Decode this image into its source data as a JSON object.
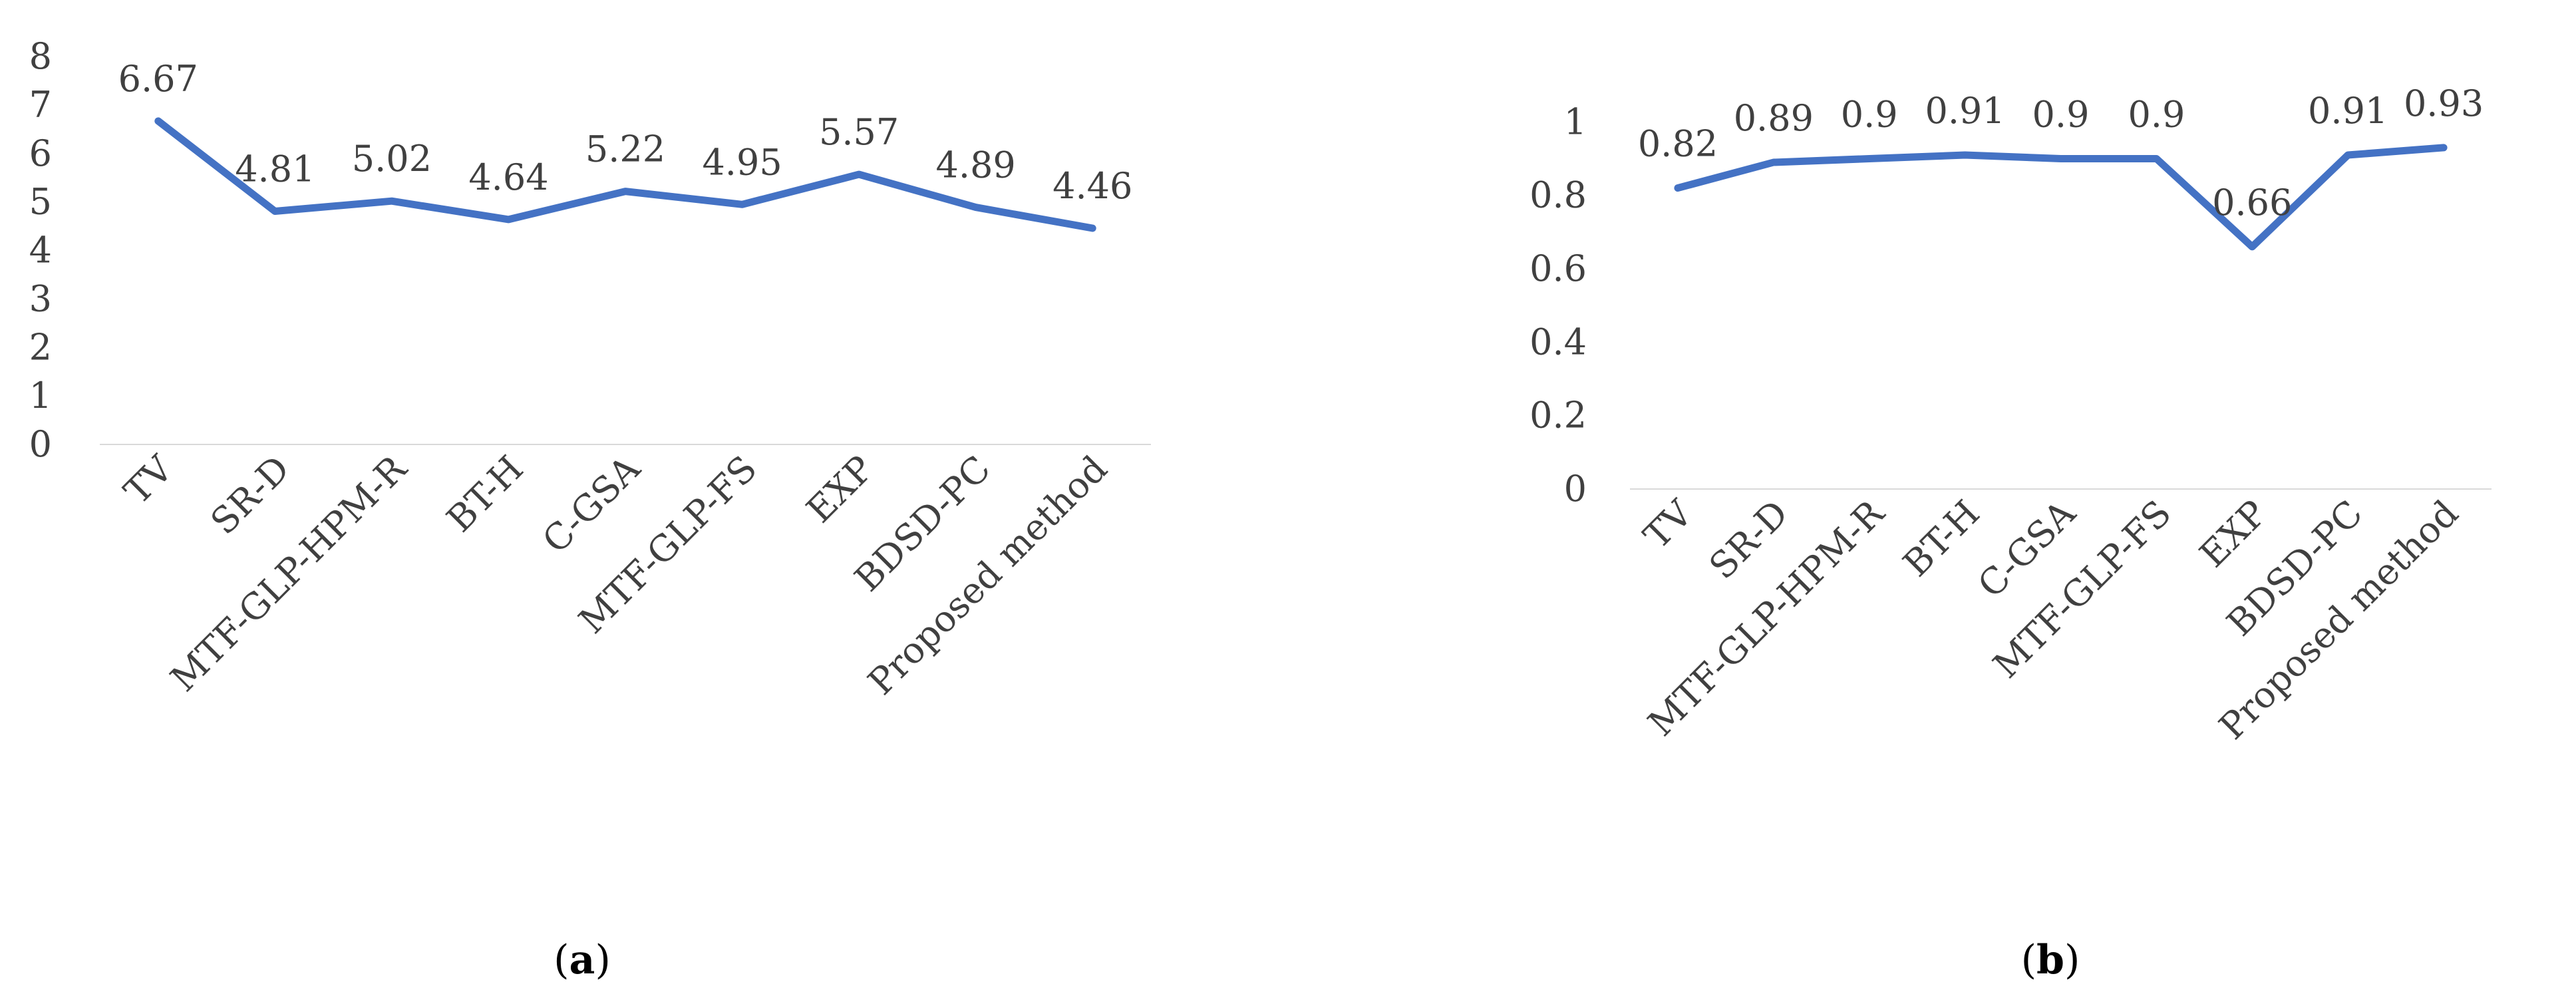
{
  "colors": {
    "line": "#4472C4",
    "axis": "#d9d9d9",
    "text": "#404040"
  },
  "charts": [
    {
      "caption_letter": "a"
    },
    {
      "caption_letter": "b"
    }
  ],
  "chart_data": [
    {
      "type": "line",
      "categories": [
        "TV",
        "SR-D",
        "MTF-GLP-HPM-R",
        "BT-H",
        "C-GSA",
        "MTF-GLP-FS",
        "EXP",
        "BDSD-PC",
        "Proposed method"
      ],
      "values": [
        6.67,
        4.81,
        5.02,
        4.64,
        5.22,
        4.95,
        5.57,
        4.89,
        4.46
      ],
      "data_labels": [
        "6.67",
        "4.81",
        "5.02",
        "4.64",
        "5.22",
        "4.95",
        "5.57",
        "4.89",
        "4.46"
      ],
      "ylim": [
        0,
        8
      ],
      "yticks": [
        "0",
        "1",
        "2",
        "3",
        "4",
        "5",
        "6",
        "7",
        "8"
      ],
      "grid": false,
      "title": "",
      "xlabel": "",
      "ylabel": ""
    },
    {
      "type": "line",
      "categories": [
        "TV",
        "SR-D",
        "MTF-GLP-HPM-R",
        "BT-H",
        "C-GSA",
        "MTF-GLP-FS",
        "EXP",
        "BDSD-PC",
        "Proposed method"
      ],
      "values": [
        0.82,
        0.89,
        0.9,
        0.91,
        0.9,
        0.9,
        0.66,
        0.91,
        0.93
      ],
      "data_labels": [
        "0.82",
        "0.89",
        "0.9",
        "0.91",
        "0.9",
        "0.9",
        "0.66",
        "0.91",
        "0.93"
      ],
      "ylim": [
        0,
        1.2
      ],
      "yticks": [
        "0",
        "0.2",
        "0.4",
        "0.6",
        "0.8",
        "1"
      ],
      "grid": false,
      "title": "",
      "xlabel": "",
      "ylabel": ""
    }
  ]
}
